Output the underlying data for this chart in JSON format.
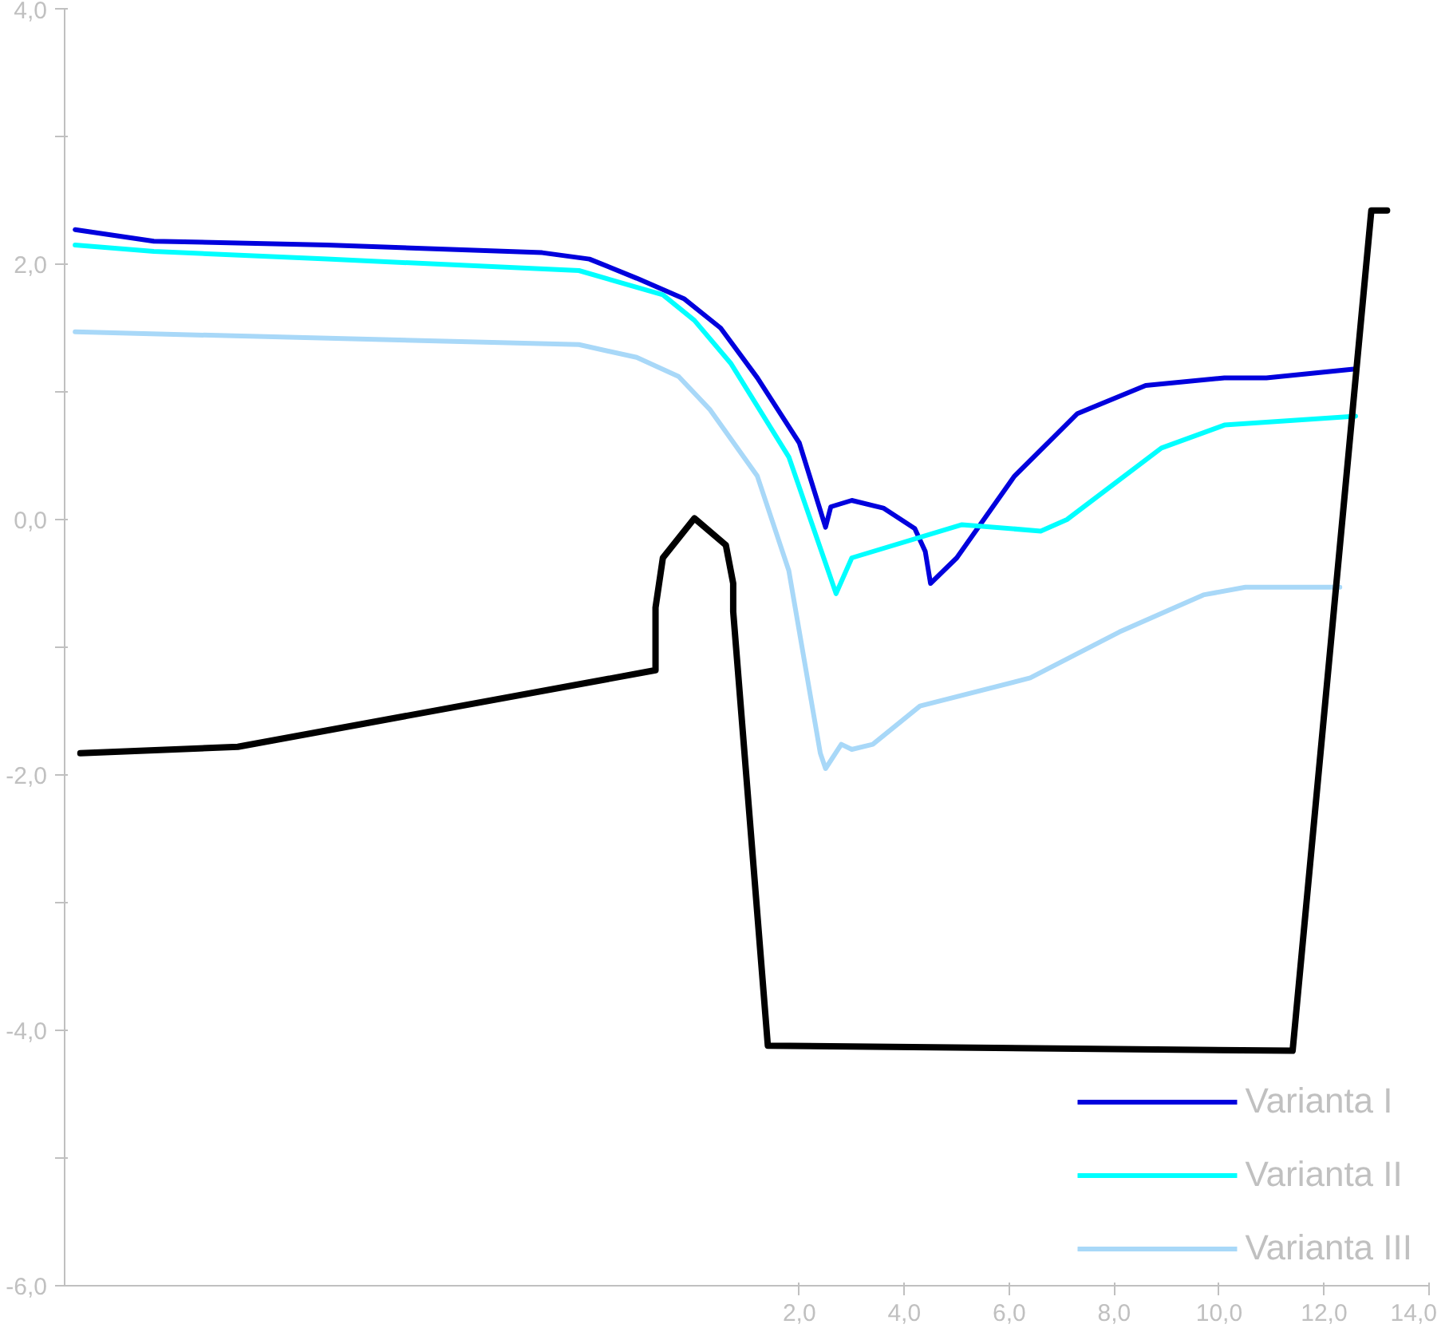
{
  "chart_data": {
    "type": "line",
    "xlim": [
      -12,
      14
    ],
    "ylim": [
      -6,
      4
    ],
    "xticks": [
      {
        "value": 2,
        "label": "2,0"
      },
      {
        "value": 4,
        "label": "4,0"
      },
      {
        "value": 6,
        "label": "6,0"
      },
      {
        "value": 8,
        "label": "8,0"
      },
      {
        "value": 10,
        "label": "10,0"
      },
      {
        "value": 12,
        "label": "12,0"
      },
      {
        "value": 14,
        "label": "14,0"
      }
    ],
    "yticks": [
      {
        "value": -6,
        "label": "-6,0"
      },
      {
        "value": -5,
        "label": null
      },
      {
        "value": -4,
        "label": "-4,0"
      },
      {
        "value": -3,
        "label": null
      },
      {
        "value": -2,
        "label": "-2,0"
      },
      {
        "value": -1,
        "label": null
      },
      {
        "value": 0,
        "label": "0,0"
      },
      {
        "value": 1,
        "label": null
      },
      {
        "value": 2,
        "label": "2,0"
      },
      {
        "value": 3,
        "label": null
      },
      {
        "value": 4,
        "label": "4,0"
      }
    ],
    "grid": false,
    "legend": "bottom right",
    "marker": "none",
    "line_style": "solid",
    "series": [
      {
        "name": "Varianta I",
        "color": "#0000dd",
        "x": [
          -11.8,
          -10.3,
          -7.0,
          -2.9,
          -2.0,
          -1.1,
          -0.2,
          0.5,
          1.2,
          2.0,
          2.5,
          2.6,
          3.0,
          3.6,
          4.2,
          4.4,
          4.5,
          5.0,
          6.1,
          7.3,
          8.6,
          10.1,
          10.9,
          12.6
        ],
        "values": [
          2.27,
          2.18,
          2.15,
          2.09,
          2.04,
          1.89,
          1.73,
          1.5,
          1.11,
          0.6,
          -0.06,
          0.1,
          0.15,
          0.09,
          -0.07,
          -0.25,
          -0.5,
          -0.3,
          0.34,
          0.83,
          1.05,
          1.11,
          1.11,
          1.18
        ]
      },
      {
        "name": "Varianta II",
        "color": "#00ffff",
        "x": [
          -11.8,
          -10.3,
          -7.0,
          -2.2,
          -0.6,
          0.0,
          0.7,
          1.8,
          2.7,
          3.0,
          5.1,
          6.6,
          7.1,
          8.9,
          10.1,
          12.6
        ],
        "values": [
          2.15,
          2.1,
          2.04,
          1.95,
          1.76,
          1.56,
          1.22,
          0.49,
          -0.58,
          -0.3,
          -0.04,
          -0.09,
          0.0,
          0.56,
          0.74,
          0.81
        ]
      },
      {
        "name": "Varianta III",
        "color": "#a8d8f8",
        "x": [
          -11.8,
          -2.2,
          -1.1,
          -0.3,
          0.3,
          1.2,
          1.8,
          2.4,
          2.5,
          2.8,
          3.0,
          3.4,
          4.3,
          6.4,
          8.1,
          9.7,
          10.5,
          12.3
        ],
        "values": [
          1.47,
          1.37,
          1.27,
          1.12,
          0.86,
          0.34,
          -0.4,
          -1.83,
          -1.95,
          -1.76,
          -1.8,
          -1.76,
          -1.46,
          -1.24,
          -0.88,
          -0.59,
          -0.53,
          -0.53
        ]
      },
      {
        "color": "#000000",
        "x": [
          -11.7,
          -8.7,
          -0.74,
          -0.74,
          -0.6,
          0.0,
          0.6,
          0.74,
          0.74,
          1.4,
          11.4,
          12.9,
          13.2
        ],
        "values": [
          -1.83,
          -1.78,
          -1.18,
          -0.69,
          -0.3,
          0.01,
          -0.2,
          -0.5,
          -0.72,
          -4.12,
          -4.16,
          2.42,
          2.42
        ]
      }
    ]
  }
}
